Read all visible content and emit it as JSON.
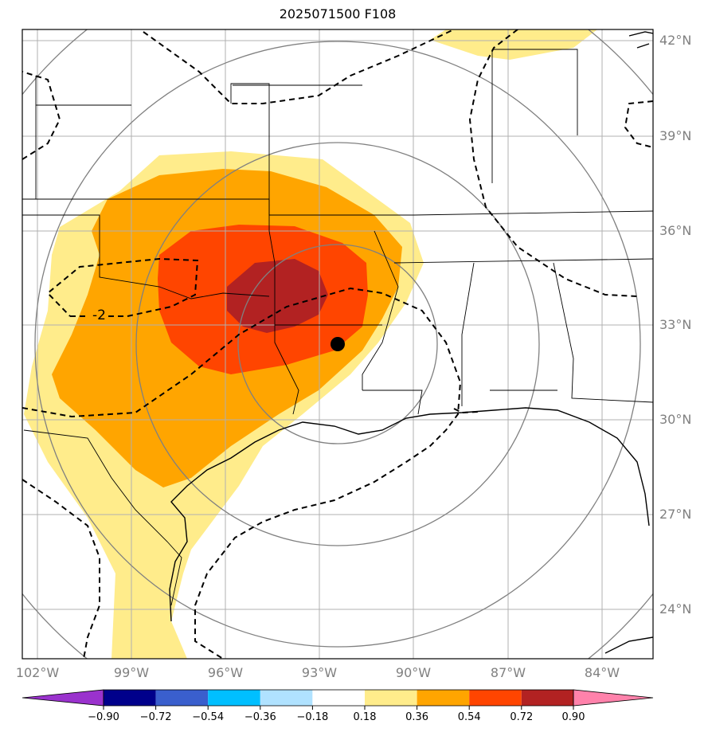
{
  "title": "2025071500 F108",
  "lat_labels": [
    "42°N",
    "39°N",
    "36°N",
    "33°N",
    "30°N",
    "27°N",
    "24°N"
  ],
  "lon_labels": [
    "102°W",
    "99°W",
    "96°W",
    "93°W",
    "90°W",
    "87°W",
    "84°W"
  ],
  "contour_label": "-2",
  "colorbar": {
    "ticks": [
      "−0.90",
      "−0.72",
      "−0.54",
      "−0.36",
      "−0.18",
      "0.18",
      "0.36",
      "0.54",
      "0.72",
      "0.90"
    ],
    "colors": [
      "#9a32cd",
      "#00008b",
      "#3a5fcd",
      "#00bfff",
      "#b0e2ff",
      "#ffffff",
      "#ffec8b",
      "#ffa500",
      "#ff4500",
      "#b22222",
      "#ff82ab"
    ]
  },
  "fill_colors": {
    "level_018": "#ffec8b",
    "level_036": "#ffa500",
    "level_054": "#ff4500",
    "level_072": "#b22222"
  },
  "marker": "storm-center-dot"
}
